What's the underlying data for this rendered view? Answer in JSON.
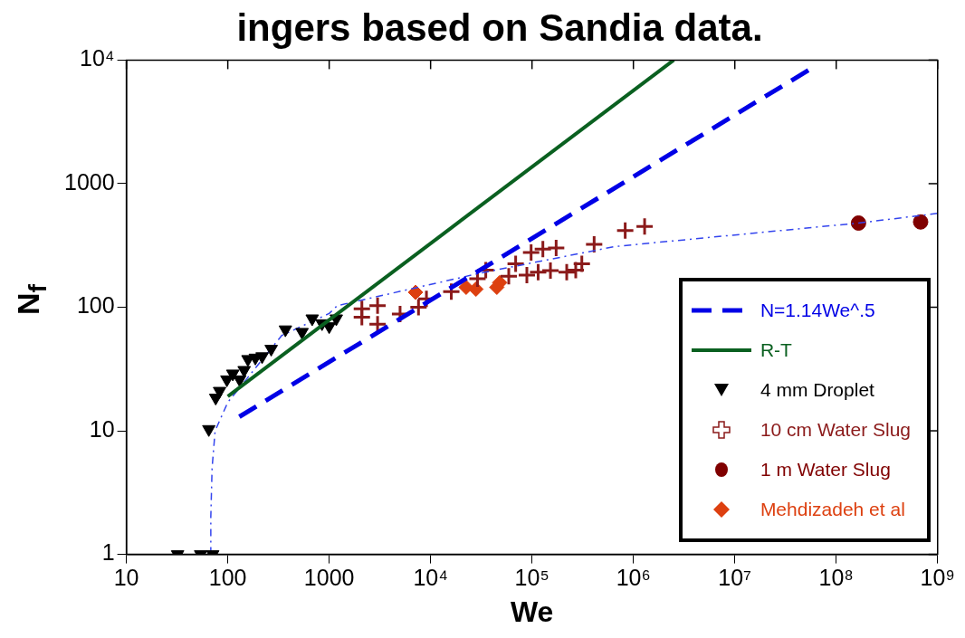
{
  "chart_data": {
    "type": "scatter",
    "title": "ingers based on Sandia data.",
    "xlabel": "We",
    "ylabel": "N$_{f}$",
    "log": "xy",
    "xlim": [
      10,
      1000000000
    ],
    "ylim": [
      1,
      10000
    ],
    "xticks": [
      10,
      100,
      1000,
      {
        "value": 10000,
        "label": "10⁴"
      },
      {
        "value": 100000,
        "label": "10⁵"
      },
      {
        "value": 1000000,
        "label": "10⁶"
      },
      {
        "value": 10000000,
        "label": "10⁷"
      },
      {
        "value": 100000000,
        "label": "10⁸"
      },
      {
        "value": 1000000000,
        "label": "10⁹"
      }
    ],
    "yticks": [
      1,
      10,
      100,
      1000,
      {
        "value": 10000,
        "label": "10⁴"
      }
    ],
    "grid": false,
    "legend": "bottom right",
    "series": [
      {
        "name": "N=1.14We^.5",
        "type": "line",
        "color": "#0000e6",
        "line_style": "dashed",
        "marker": "none",
        "x": [
          130,
          10000,
          1000000,
          56000000
        ],
        "values": [
          13,
          114,
          1140,
          8500
        ]
      },
      {
        "name": "R-T",
        "type": "line",
        "color": "#0a6020",
        "line_style": "solid",
        "marker": "none",
        "x": [
          100,
          2500000
        ],
        "values": [
          19,
          10000
        ]
      },
      {
        "name": "4 mm Droplet",
        "color": "#000000",
        "marker": "triangle",
        "x": [
          32,
          54,
          71,
          65,
          76,
          83,
          98,
          112,
          131,
          145,
          158,
          187,
          218,
          268,
          370,
          540,
          680,
          850,
          1000,
          1175
        ],
        "values": [
          1,
          1,
          1,
          10.3,
          18.5,
          21,
          26,
          29,
          26,
          31,
          38,
          39,
          40,
          46,
          66,
          63,
          81,
          74,
          70,
          81
        ]
      },
      {
        "type": "line",
        "color": "#3344ee",
        "line_style": "dotted",
        "marker": "none",
        "x": [
          68,
          68,
          70,
          75,
          100,
          340,
          1000,
          1200,
          32000,
          660000,
          166000000,
          1000000000
        ],
        "values": [
          1,
          2,
          5,
          10,
          17,
          59,
          89,
          103,
          190,
          310,
          480,
          575
        ]
      },
      {
        "name": "10 cm Water Slug",
        "color": "#8b1a1a",
        "marker": "cross",
        "x": [
          2100,
          2100,
          3000,
          3000,
          5000,
          7600,
          9100,
          16000,
          29000,
          35000,
          59000,
          69000,
          89000,
          98000,
          115000,
          128000,
          152000,
          173000,
          220000,
          270000,
          310000,
          410000,
          830000,
          1290000
        ],
        "values": [
          97,
          83,
          103,
          73,
          88,
          100,
          117,
          134,
          170,
          200,
          178,
          225,
          182,
          277,
          192,
          295,
          198,
          302,
          192,
          200,
          225,
          323,
          417,
          450
        ]
      },
      {
        "name": "1 m Water Slug",
        "color": "#800000",
        "marker": "circle",
        "x": [
          166000000,
          680000000
        ],
        "values": [
          480,
          490
        ]
      },
      {
        "name": "Mehdizadeh et al",
        "color": "#dd4010",
        "marker": "diamond",
        "x": [
          7100,
          22400,
          28000,
          44000,
          45000,
          48000
        ],
        "values": [
          132,
          145,
          140,
          null,
          145,
          158
        ]
      }
    ]
  }
}
